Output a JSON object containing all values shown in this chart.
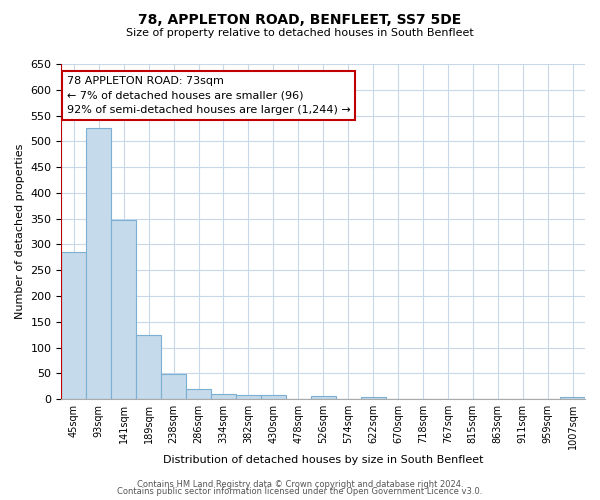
{
  "title": "78, APPLETON ROAD, BENFLEET, SS7 5DE",
  "subtitle": "Size of property relative to detached houses in South Benfleet",
  "xlabel": "Distribution of detached houses by size in South Benfleet",
  "ylabel": "Number of detached properties",
  "bar_color": "#c5daea",
  "bar_edge_color": "#7bafd4",
  "highlight_color": "#c00000",
  "categories": [
    "45sqm",
    "93sqm",
    "141sqm",
    "189sqm",
    "238sqm",
    "286sqm",
    "334sqm",
    "382sqm",
    "430sqm",
    "478sqm",
    "526sqm",
    "574sqm",
    "622sqm",
    "670sqm",
    "718sqm",
    "767sqm",
    "815sqm",
    "863sqm",
    "911sqm",
    "959sqm",
    "1007sqm"
  ],
  "values": [
    285,
    525,
    347,
    125,
    48,
    19,
    11,
    9,
    8,
    0,
    7,
    0,
    4,
    0,
    0,
    0,
    0,
    0,
    0,
    0,
    5
  ],
  "ylim": [
    0,
    650
  ],
  "yticks": [
    0,
    50,
    100,
    150,
    200,
    250,
    300,
    350,
    400,
    450,
    500,
    550,
    600,
    650
  ],
  "property_label": "78 APPLETON ROAD: 73sqm",
  "annotation_line1": "← 7% of detached houses are smaller (96)",
  "annotation_line2": "92% of semi-detached houses are larger (1,244) →",
  "footer1": "Contains HM Land Registry data © Crown copyright and database right 2024.",
  "footer2": "Contains public sector information licensed under the Open Government Licence v3.0.",
  "background_color": "#ffffff",
  "grid_color": "#c8d8e8",
  "vline_x": -0.5
}
